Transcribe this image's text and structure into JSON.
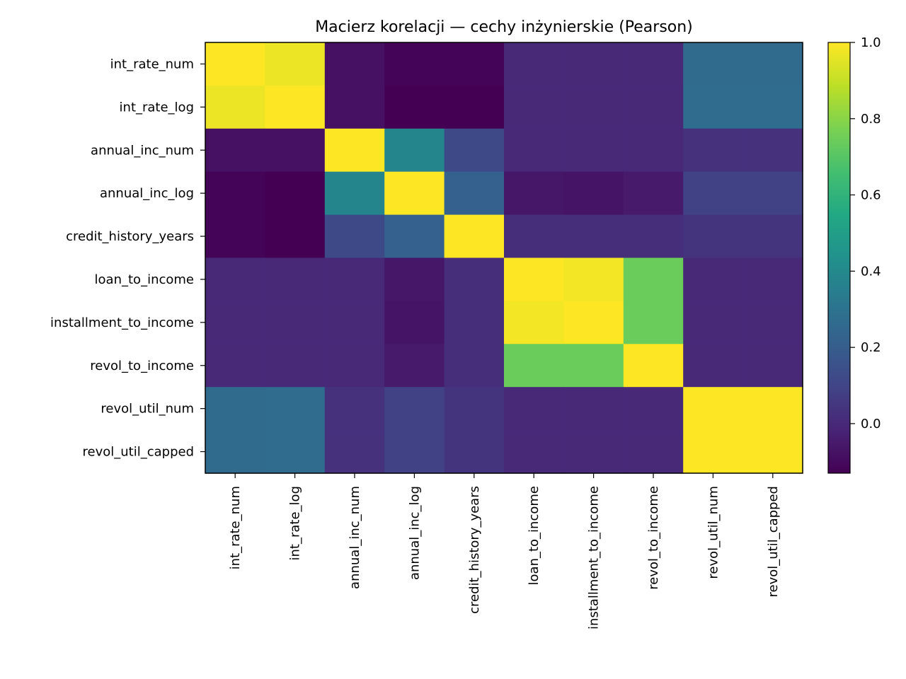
{
  "chart_data": {
    "type": "heatmap",
    "title": "Macierz korelacji — cechy inżynierskie (Pearson)",
    "x_labels": [
      "int_rate_num",
      "int_rate_log",
      "annual_inc_num",
      "annual_inc_log",
      "credit_history_years",
      "loan_to_income",
      "installment_to_income",
      "revol_to_income",
      "revol_util_num",
      "revol_util_capped"
    ],
    "y_labels": [
      "int_rate_num",
      "int_rate_log",
      "annual_inc_num",
      "annual_inc_log",
      "credit_history_years",
      "loan_to_income",
      "installment_to_income",
      "revol_to_income",
      "revol_util_num",
      "revol_util_capped"
    ],
    "values": [
      [
        1.0,
        0.97,
        -0.08,
        -0.12,
        -0.12,
        0.0,
        0.0,
        0.0,
        0.26,
        0.26
      ],
      [
        0.97,
        1.0,
        -0.08,
        -0.13,
        -0.13,
        0.0,
        0.0,
        0.0,
        0.27,
        0.27
      ],
      [
        -0.08,
        -0.08,
        1.0,
        0.38,
        0.12,
        0.0,
        0.0,
        0.0,
        0.03,
        0.03
      ],
      [
        -0.12,
        -0.13,
        0.38,
        1.0,
        0.22,
        -0.06,
        -0.07,
        -0.05,
        0.09,
        0.09
      ],
      [
        -0.12,
        -0.13,
        0.12,
        0.22,
        1.0,
        0.02,
        0.02,
        0.02,
        0.04,
        0.04
      ],
      [
        0.0,
        0.0,
        0.0,
        -0.06,
        0.02,
        1.0,
        0.98,
        0.74,
        0.0,
        0.0
      ],
      [
        0.0,
        0.0,
        0.0,
        -0.07,
        0.02,
        0.98,
        1.0,
        0.74,
        0.0,
        0.0
      ],
      [
        0.0,
        0.0,
        0.0,
        -0.05,
        0.02,
        0.74,
        0.74,
        1.0,
        0.0,
        0.0
      ],
      [
        0.26,
        0.27,
        0.03,
        0.09,
        0.04,
        0.0,
        0.0,
        0.0,
        1.0,
        1.0
      ],
      [
        0.26,
        0.27,
        0.03,
        0.09,
        0.04,
        0.0,
        0.0,
        0.0,
        1.0,
        1.0
      ]
    ],
    "colormap": "viridis",
    "vmin": -0.13,
    "vmax": 1.0,
    "colorbar_ticks": [
      {
        "value": 1.0,
        "label": "1.0"
      },
      {
        "value": 0.8,
        "label": "0.8"
      },
      {
        "value": 0.6,
        "label": "0.6"
      },
      {
        "value": 0.4,
        "label": "0.4"
      },
      {
        "value": 0.2,
        "label": "0.2"
      },
      {
        "value": 0.0,
        "label": "0.0"
      }
    ],
    "grid": false,
    "colorbar_position": "right"
  }
}
